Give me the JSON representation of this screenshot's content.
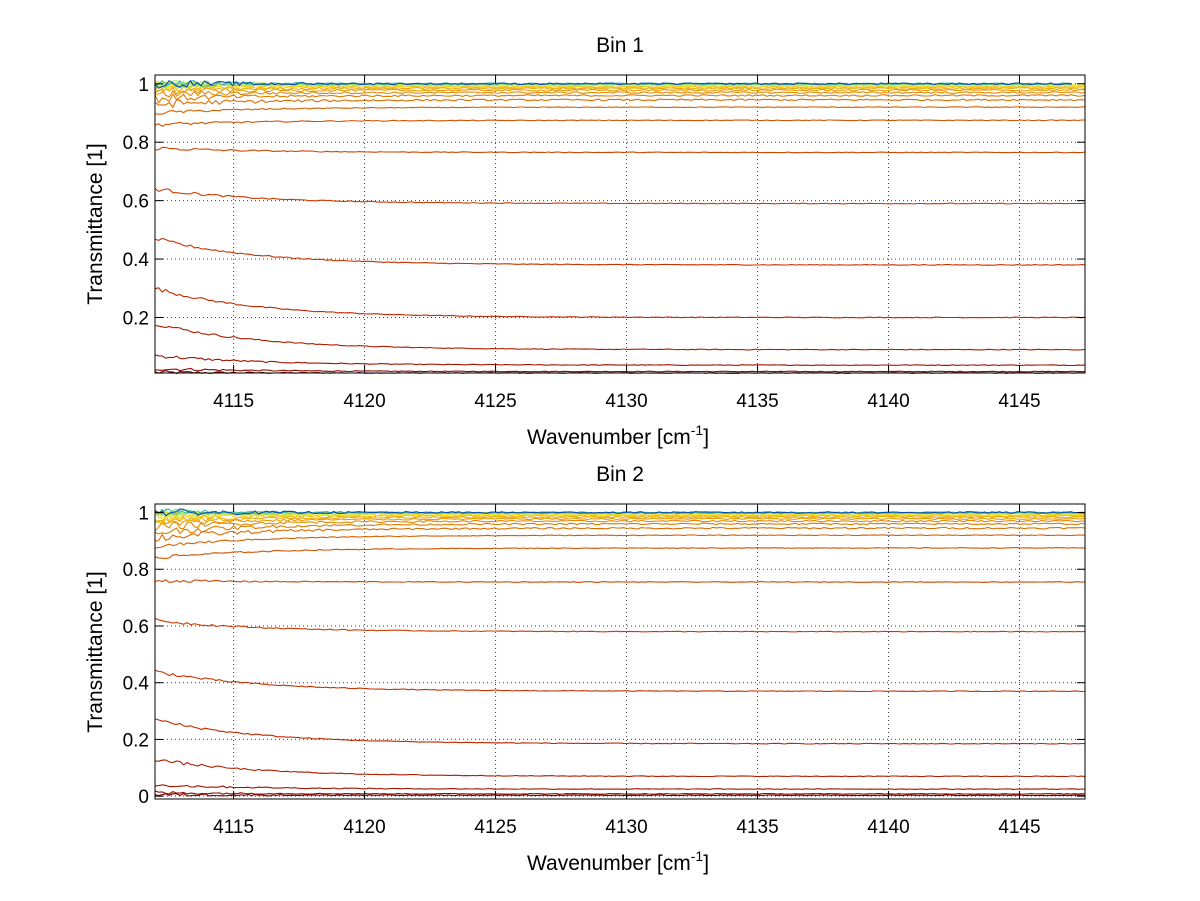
{
  "chart_data": [
    {
      "type": "line",
      "title": "Bin 1",
      "xlabel": "Wavenumber [cm",
      "xlabel_sup": "-1",
      "xlabel_end": "]",
      "ylabel": "Transmittance [1]",
      "xlim": [
        4112.0,
        4147.5
      ],
      "ylim": [
        0.01,
        1.03
      ],
      "xticks": [
        4115,
        4120,
        4125,
        4130,
        4135,
        4140,
        4145
      ],
      "yticks": [
        0.2,
        0.4,
        0.6,
        0.8,
        1
      ],
      "ytick_labels": [
        "0.2",
        "0.4",
        "0.6",
        "0.8",
        "1"
      ],
      "grid": true,
      "series_count": 24,
      "series_start_levels": [
        0.012,
        0.025,
        0.07,
        0.18,
        0.3,
        0.47,
        0.64,
        0.78,
        0.86,
        0.9,
        0.93,
        0.95,
        0.965,
        0.975,
        0.983,
        0.988,
        0.992,
        0.995,
        0.997,
        0.998,
        0.999,
        1.0,
        1.0,
        1.0
      ],
      "series_end_levels": [
        0.01,
        0.015,
        0.037,
        0.09,
        0.2,
        0.38,
        0.59,
        0.765,
        0.875,
        0.92,
        0.945,
        0.96,
        0.97,
        0.978,
        0.984,
        0.988,
        0.991,
        0.994,
        0.996,
        0.997,
        0.998,
        0.999,
        1.0,
        1.0
      ],
      "colors": [
        "#7f0000",
        "#8f0a00",
        "#a01400",
        "#b01e00",
        "#c02800",
        "#c83200",
        "#cc3c00",
        "#cf4800",
        "#d25400",
        "#d66000",
        "#da6e00",
        "#de7c00",
        "#e28a04",
        "#e69a0a",
        "#eaaa10",
        "#eebb18",
        "#f2cc20",
        "#f6dc28",
        "#f2ea30",
        "#d8ee40",
        "#a8e660",
        "#70d88c",
        "#38b4b8",
        "#0a4ca8"
      ]
    },
    {
      "type": "line",
      "title": "Bin 2",
      "xlabel": "Wavenumber [cm",
      "xlabel_sup": "-1",
      "xlabel_end": "]",
      "ylabel": "Transmittance [1]",
      "xlim": [
        4112.0,
        4147.5
      ],
      "ylim": [
        -0.01,
        1.03
      ],
      "xticks": [
        4115,
        4120,
        4125,
        4130,
        4135,
        4140,
        4145
      ],
      "yticks": [
        0,
        0.2,
        0.4,
        0.6,
        0.8,
        1
      ],
      "ytick_labels": [
        "0",
        "0.2",
        "0.4",
        "0.6",
        "0.8",
        "1"
      ],
      "grid": true,
      "series_count": 24,
      "series_start_levels": [
        0.005,
        0.012,
        0.04,
        0.13,
        0.27,
        0.44,
        0.62,
        0.76,
        0.84,
        0.88,
        0.91,
        0.93,
        0.95,
        0.96,
        0.97,
        0.978,
        0.985,
        0.99,
        0.993,
        0.996,
        0.998,
        0.999,
        1.0,
        1.0
      ],
      "series_end_levels": [
        0.003,
        0.008,
        0.025,
        0.07,
        0.185,
        0.37,
        0.58,
        0.755,
        0.875,
        0.92,
        0.945,
        0.96,
        0.97,
        0.978,
        0.984,
        0.988,
        0.991,
        0.994,
        0.996,
        0.997,
        0.998,
        0.999,
        1.0,
        1.0
      ],
      "colors": [
        "#7f0000",
        "#8f0a00",
        "#a01400",
        "#b01e00",
        "#c02800",
        "#c83200",
        "#cc3c00",
        "#cf4800",
        "#d25400",
        "#d66000",
        "#da6e00",
        "#de7c00",
        "#e28a04",
        "#e69a0a",
        "#eaaa10",
        "#eebb18",
        "#f2cc20",
        "#f6dc28",
        "#f2ea30",
        "#d8ee40",
        "#a8e660",
        "#70d88c",
        "#38b4b8",
        "#0a4ca8"
      ]
    }
  ]
}
